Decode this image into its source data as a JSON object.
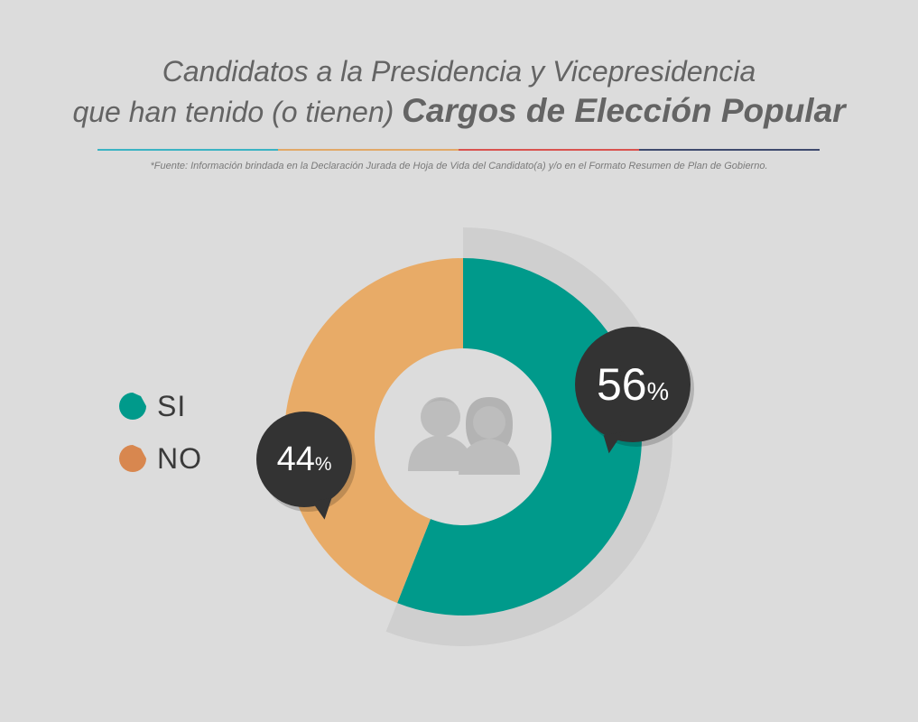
{
  "title": {
    "line1": "Candidatos a la Presidencia y Vicepresidencia",
    "line2_normal": "que han tenido (o tienen) ",
    "line2_strong": "Cargos de Elección Popular"
  },
  "source": "*Fuente: Información brindada en la Declaración Jurada de Hoja de Vida del Candidato(a) y/o en el Formato Resumen de Plan de Gobierno.",
  "rule_colors": [
    "#3bb3c3",
    "#e2a968",
    "#d9534f",
    "#3f4a6e"
  ],
  "center_icon": "two-people-icon",
  "chart_data": {
    "type": "pie",
    "style": "donut",
    "title": "Candidatos a la Presidencia y Vicepresidencia que han tenido (o tienen) Cargos de Elección Popular",
    "legend_position": "left",
    "series": [
      {
        "name": "SI",
        "value": 56,
        "label": "56",
        "unit": "%",
        "color": "#009a8b",
        "legend_color": "#009a8b"
      },
      {
        "name": "NO",
        "value": 44,
        "label": "44",
        "unit": "%",
        "color": "#e8ab67",
        "legend_color": "#d8874f"
      }
    ]
  }
}
